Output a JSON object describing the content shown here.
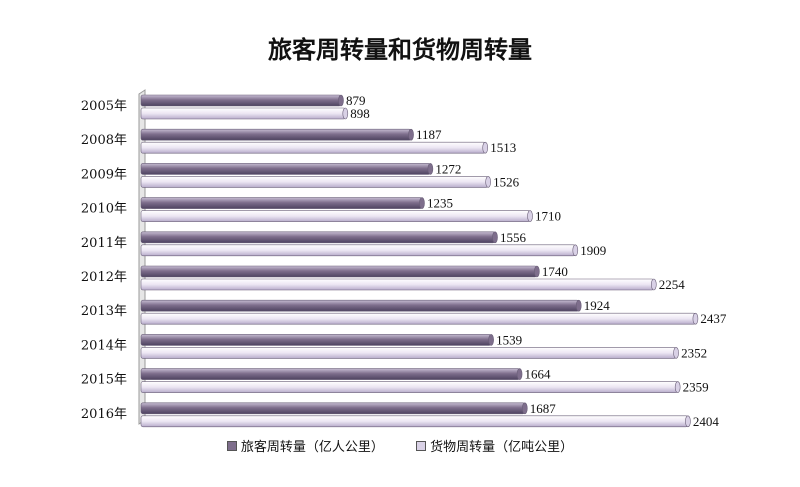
{
  "title": "旅客周转量和货物周转量",
  "chart_data": {
    "type": "bar",
    "orientation": "horizontal",
    "title": "旅客周转量和货物周转量",
    "categories": [
      "2005年",
      "2008年",
      "2009年",
      "2010年",
      "2011年",
      "2012年",
      "2013年",
      "2014年",
      "2015年",
      "2016年"
    ],
    "series": [
      {
        "name": "旅客周转量（亿人公里）",
        "values": [
          879,
          1187,
          1272,
          1235,
          1556,
          1740,
          1924,
          1539,
          1664,
          1687
        ],
        "color": "#7e6e8c"
      },
      {
        "name": "货物周转量（亿吨公里）",
        "values": [
          898,
          1513,
          1526,
          1710,
          1909,
          2254,
          2437,
          2352,
          2359,
          2404
        ],
        "color": "#d9d1e6"
      }
    ],
    "xlim": [
      0,
      2600
    ],
    "grid": false,
    "legend_position": "bottom"
  }
}
